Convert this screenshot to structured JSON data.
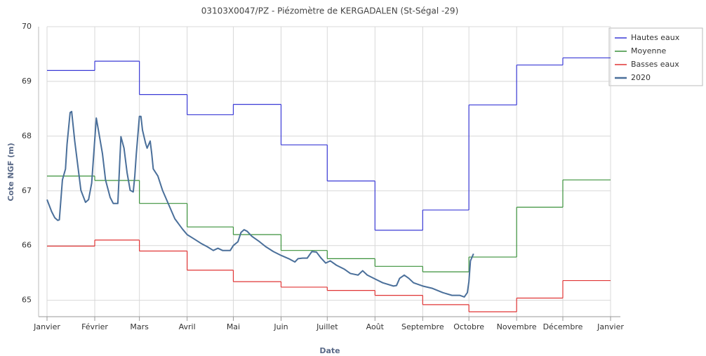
{
  "chart_data": {
    "type": "line",
    "title": "03103X0047/PZ - Piézomètre de KERGADALEN (St-Ségal -29)",
    "x_label": "Date",
    "y_label": "Cote NGF (m)",
    "xlim": [
      0,
      366
    ],
    "xticks": [
      {
        "value": 0,
        "label": "Janvier"
      },
      {
        "value": 31,
        "label": "Février"
      },
      {
        "value": 60,
        "label": "Mars"
      },
      {
        "value": 91,
        "label": "Avril"
      },
      {
        "value": 121,
        "label": "Mai"
      },
      {
        "value": 152,
        "label": "Juin"
      },
      {
        "value": 182,
        "label": "Juillet"
      },
      {
        "value": 213,
        "label": "Août"
      },
      {
        "value": 244,
        "label": "Septembre"
      },
      {
        "value": 274,
        "label": "Octobre"
      },
      {
        "value": 305,
        "label": "Novembre"
      },
      {
        "value": 335,
        "label": "Décembre"
      },
      {
        "value": 366,
        "label": "Janvier"
      }
    ],
    "ylim": [
      64.7,
      70
    ],
    "yticks": [
      65,
      66,
      67,
      68,
      69,
      70
    ],
    "grid": true,
    "legend": "top-right",
    "series": [
      {
        "name": "Hautes eaux",
        "color": "#3a3ad6",
        "step": true,
        "x": [
          0,
          31,
          60,
          91,
          121,
          152,
          182,
          213,
          244,
          274,
          305,
          335
        ],
        "values": [
          69.2,
          69.37,
          68.76,
          68.39,
          68.58,
          67.84,
          67.18,
          66.28,
          66.65,
          68.57,
          69.3,
          69.43
        ]
      },
      {
        "name": "Moyenne",
        "color": "#3a913a",
        "step": true,
        "x": [
          0,
          31,
          60,
          91,
          121,
          152,
          182,
          213,
          244,
          274,
          305,
          335
        ],
        "values": [
          67.27,
          67.19,
          66.77,
          66.34,
          66.2,
          65.91,
          65.76,
          65.62,
          65.52,
          65.79,
          66.7,
          67.2
        ]
      },
      {
        "name": "Basses eaux",
        "color": "#e03535",
        "step": true,
        "x": [
          0,
          31,
          60,
          91,
          121,
          152,
          182,
          213,
          244,
          274,
          305,
          335
        ],
        "values": [
          65.99,
          66.1,
          65.9,
          65.55,
          65.34,
          65.24,
          65.18,
          65.09,
          64.92,
          64.79,
          65.04,
          65.36
        ]
      },
      {
        "name": "2020",
        "color": "#4a6f9a",
        "step": false,
        "x": [
          0,
          3,
          5,
          7,
          8,
          10,
          12,
          13,
          15,
          16,
          18,
          20,
          22,
          25,
          27,
          29,
          32,
          33,
          36,
          38,
          41,
          43,
          46,
          48,
          50,
          52,
          54,
          56,
          57,
          58,
          60,
          61,
          62,
          64,
          65,
          67,
          68,
          69,
          72,
          75,
          79,
          83,
          88,
          91,
          95,
          100,
          104,
          108,
          111,
          114,
          119,
          121,
          124,
          126,
          128,
          130,
          133,
          138,
          142,
          147,
          152,
          157,
          161,
          163,
          166,
          169,
          172,
          175,
          178,
          181,
          184,
          188,
          193,
          197,
          202,
          205,
          208,
          213,
          218,
          225,
          227,
          229,
          232,
          235,
          238,
          244,
          250,
          257,
          263,
          268,
          271,
          273,
          274,
          275,
          277
        ],
        "values": [
          66.84,
          66.62,
          66.51,
          66.46,
          66.47,
          67.2,
          67.4,
          67.85,
          68.43,
          68.45,
          67.91,
          67.46,
          67.01,
          66.79,
          66.84,
          67.14,
          68.33,
          68.17,
          67.68,
          67.2,
          66.88,
          66.77,
          66.77,
          67.99,
          67.78,
          67.33,
          67.01,
          66.98,
          67.27,
          67.68,
          68.36,
          68.36,
          68.11,
          67.87,
          67.78,
          67.91,
          67.68,
          67.4,
          67.27,
          67.01,
          66.75,
          66.49,
          66.3,
          66.2,
          66.13,
          66.04,
          65.98,
          65.91,
          65.95,
          65.91,
          65.91,
          66.0,
          66.07,
          66.24,
          66.29,
          66.26,
          66.17,
          66.07,
          65.98,
          65.89,
          65.82,
          65.76,
          65.7,
          65.76,
          65.77,
          65.77,
          65.89,
          65.88,
          65.77,
          65.68,
          65.72,
          65.64,
          65.57,
          65.49,
          65.46,
          65.54,
          65.46,
          65.39,
          65.32,
          65.26,
          65.27,
          65.4,
          65.46,
          65.4,
          65.32,
          65.26,
          65.22,
          65.14,
          65.09,
          65.09,
          65.06,
          65.14,
          65.34,
          65.72,
          65.85
        ]
      }
    ]
  }
}
